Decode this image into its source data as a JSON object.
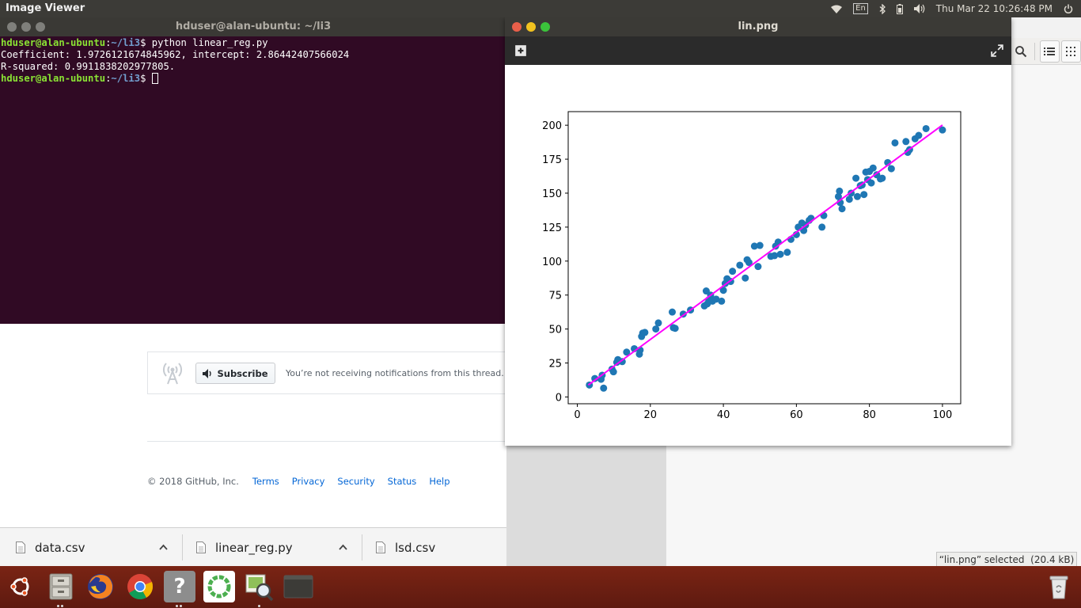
{
  "top_panel": {
    "app_name": "Image Viewer",
    "keyboard_layout": "En",
    "datetime": "Thu Mar 22 10:26:48 PM",
    "icons": [
      "wifi-icon",
      "keyboard-layout-icon",
      "bluetooth-icon",
      "battery-icon",
      "volume-icon",
      "power-icon"
    ]
  },
  "terminal": {
    "title": "hduser@alan-ubuntu: ~/li3",
    "lines": [
      {
        "user": "hduser@alan-ubuntu",
        "sep": ":",
        "path": "~/li3",
        "prompt": "$ ",
        "command": "python linear_reg.py"
      },
      {
        "text": "Coefficient: 1.9726121674845962, intercept: 2.86442407566024"
      },
      {
        "text": "R-squared: 0.9911838202977805."
      },
      {
        "user": "hduser@alan-ubuntu",
        "sep": ":",
        "path": "~/li3",
        "prompt": "$ ",
        "command": ""
      }
    ]
  },
  "browser": {
    "subscribe_label": "Subscribe",
    "subscribe_note": "You’re not receiving notifications from this thread.",
    "footer_copy": "© 2018 GitHub, Inc.",
    "footer_links": [
      "Terms",
      "Privacy",
      "Security",
      "Status",
      "Help"
    ],
    "downloads": [
      {
        "name": "data.csv"
      },
      {
        "name": "linear_reg.py"
      },
      {
        "name": "lsd.csv"
      }
    ]
  },
  "viewer": {
    "title": "lin.png"
  },
  "status_tip": "“lin.png” selected  (20.4 kB)",
  "dock": {
    "apps": [
      "ubuntu-logo-icon",
      "files-icon",
      "firefox-icon",
      "chrome-icon",
      "help-icon",
      "green-ring-app-icon",
      "image-viewer-icon",
      "terminal-icon"
    ],
    "trash": "trash-icon"
  },
  "chart_data": {
    "type": "scatter",
    "title": "",
    "xlabel": "",
    "ylabel": "",
    "xlim": [
      -2.5,
      105
    ],
    "ylim": [
      -5,
      210
    ],
    "xticks": [
      0,
      20,
      40,
      60,
      80,
      100
    ],
    "yticks": [
      0,
      25,
      50,
      75,
      100,
      125,
      150,
      175,
      200
    ],
    "grid": false,
    "series": [
      {
        "kind": "scatter",
        "color": "#1f77b4",
        "points": [
          [
            3.3,
            8.8
          ],
          [
            4.8,
            13.6
          ],
          [
            6.5,
            13.0
          ],
          [
            6.8,
            16.0
          ],
          [
            7.2,
            6.5
          ],
          [
            9.5,
            20.5
          ],
          [
            9.9,
            18.5
          ],
          [
            10.8,
            25.5
          ],
          [
            11.1,
            27.5
          ],
          [
            12.3,
            26.0
          ],
          [
            13.5,
            33.0
          ],
          [
            15.6,
            35.5
          ],
          [
            17.0,
            31.5
          ],
          [
            17.2,
            34.5
          ],
          [
            17.6,
            44.5
          ],
          [
            17.9,
            47.0
          ],
          [
            18.5,
            47.5
          ],
          [
            21.5,
            50.0
          ],
          [
            22.2,
            54.5
          ],
          [
            26.0,
            62.5
          ],
          [
            26.3,
            51.0
          ],
          [
            26.8,
            50.5
          ],
          [
            29.0,
            61.0
          ],
          [
            31.0,
            64.0
          ],
          [
            34.8,
            67.0
          ],
          [
            35.3,
            78.0
          ],
          [
            35.6,
            68.5
          ],
          [
            36.0,
            71.5
          ],
          [
            36.5,
            75.0
          ],
          [
            37.0,
            70.5
          ],
          [
            38.0,
            72.0
          ],
          [
            39.5,
            70.5
          ],
          [
            40.0,
            78.5
          ],
          [
            40.5,
            83.5
          ],
          [
            41.0,
            87.0
          ],
          [
            42.0,
            85.0
          ],
          [
            42.5,
            92.5
          ],
          [
            44.5,
            97.0
          ],
          [
            46.0,
            87.5
          ],
          [
            46.5,
            101.0
          ],
          [
            47.0,
            99.0
          ],
          [
            48.5,
            111.0
          ],
          [
            49.5,
            96.0
          ],
          [
            50.0,
            111.5
          ],
          [
            53.0,
            103.5
          ],
          [
            54.0,
            104.0
          ],
          [
            54.3,
            111.0
          ],
          [
            55.0,
            114.0
          ],
          [
            55.6,
            105.0
          ],
          [
            57.5,
            106.5
          ],
          [
            58.5,
            116.0
          ],
          [
            60.0,
            119.5
          ],
          [
            60.5,
            125.0
          ],
          [
            61.5,
            128.0
          ],
          [
            62.0,
            122.5
          ],
          [
            62.5,
            126.5
          ],
          [
            63.5,
            130.0
          ],
          [
            64.0,
            131.5
          ],
          [
            67.0,
            125.0
          ],
          [
            67.5,
            133.5
          ],
          [
            71.5,
            147.5
          ],
          [
            71.8,
            151.5
          ],
          [
            72.0,
            143.0
          ],
          [
            72.5,
            138.5
          ],
          [
            74.5,
            145.5
          ],
          [
            75.0,
            150.0
          ],
          [
            76.3,
            161.0
          ],
          [
            76.7,
            147.5
          ],
          [
            77.5,
            155.5
          ],
          [
            78.0,
            156.0
          ],
          [
            78.5,
            149.0
          ],
          [
            79.0,
            165.5
          ],
          [
            79.5,
            160.0
          ],
          [
            80.0,
            166.0
          ],
          [
            80.5,
            157.5
          ],
          [
            81.0,
            168.5
          ],
          [
            82.0,
            163.5
          ],
          [
            83.0,
            160.5
          ],
          [
            83.5,
            161.0
          ],
          [
            85.0,
            172.5
          ],
          [
            86.0,
            168.0
          ],
          [
            87.0,
            187.0
          ],
          [
            90.0,
            188.0
          ],
          [
            90.5,
            180.0
          ],
          [
            91.0,
            182.0
          ],
          [
            92.5,
            190.0
          ],
          [
            93.5,
            192.5
          ],
          [
            95.5,
            197.5
          ],
          [
            100.0,
            196.5
          ]
        ]
      },
      {
        "kind": "line",
        "name": "",
        "color": "#ff00ff",
        "x": [
          3.0,
          100.0
        ],
        "y": [
          8.78,
          200.13
        ]
      }
    ]
  }
}
